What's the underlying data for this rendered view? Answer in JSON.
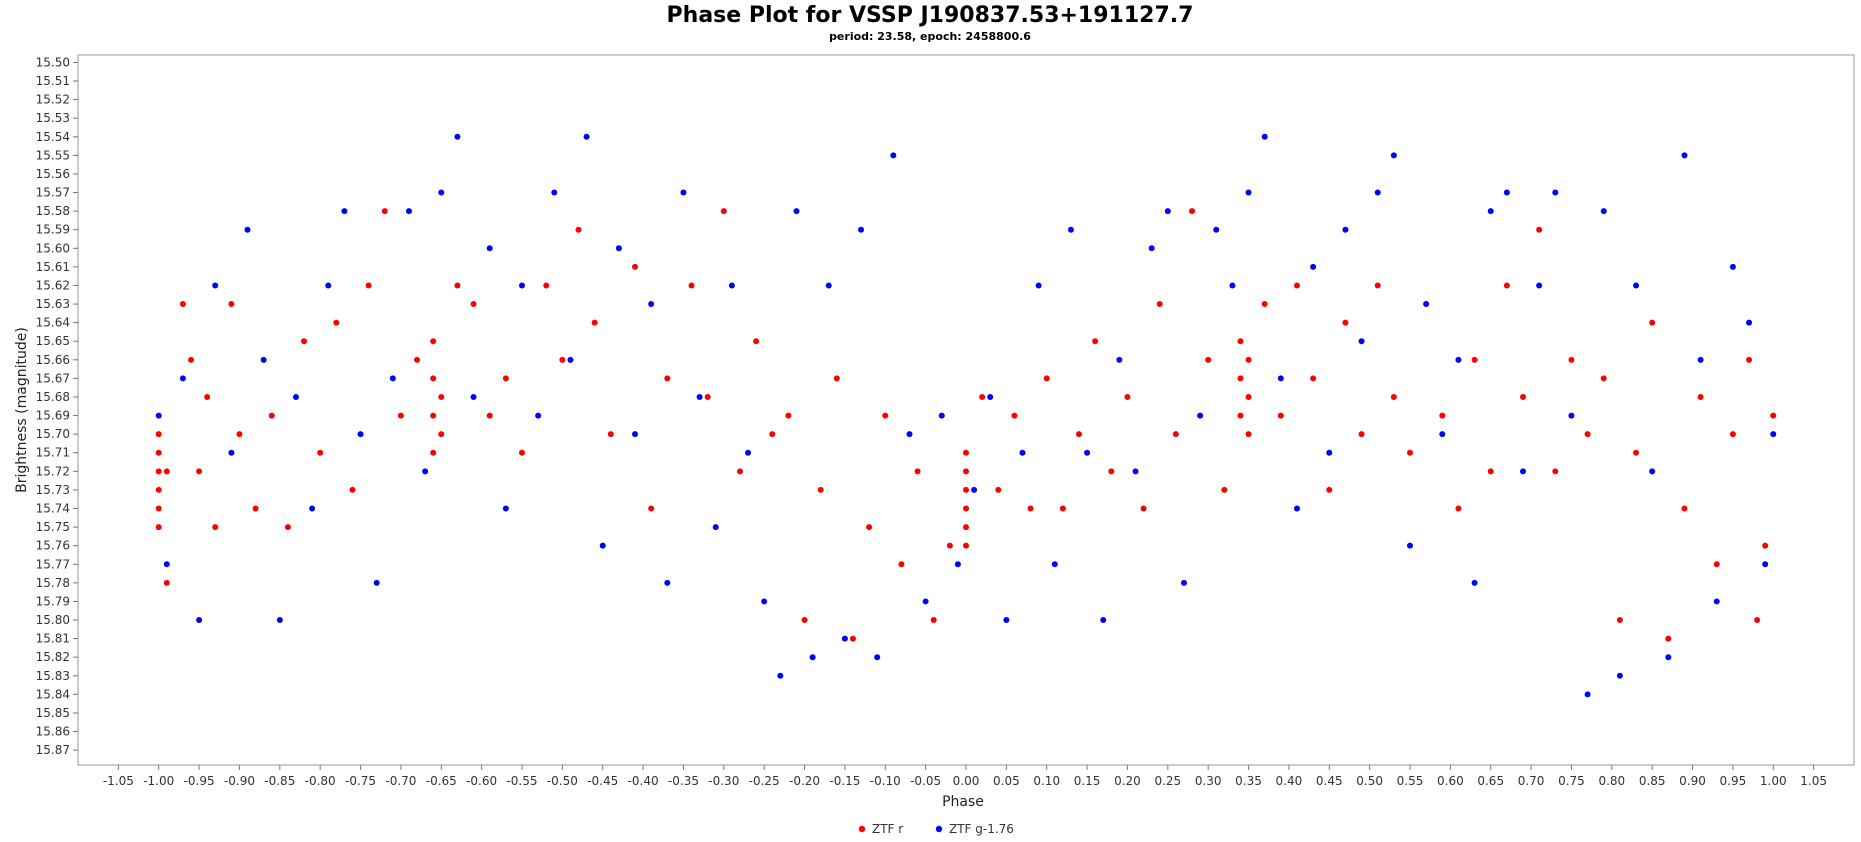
{
  "chart_data": {
    "type": "scatter",
    "title": "Phase Plot for VSSP J190837.53+191127.7",
    "subtitle": "period: 23.58, epoch: 2458800.6",
    "xlabel": "Phase",
    "ylabel": "Brightness (magnitude)",
    "xlim": [
      -1.1,
      1.1
    ],
    "ylim": [
      15.878,
      15.496
    ],
    "y_inverted": true,
    "grid": false,
    "legend_position": "bottom-center",
    "x_ticks": [
      "-1.05",
      "-1.00",
      "-0.95",
      "-0.90",
      "-0.85",
      "-0.80",
      "-0.75",
      "-0.70",
      "-0.65",
      "-0.60",
      "-0.55",
      "-0.50",
      "-0.45",
      "-0.40",
      "-0.35",
      "-0.30",
      "-0.25",
      "-0.20",
      "-0.15",
      "-0.10",
      "-0.05",
      "0.00",
      "0.05",
      "0.10",
      "0.15",
      "0.20",
      "0.25",
      "0.30",
      "0.35",
      "0.40",
      "0.45",
      "0.50",
      "0.55",
      "0.60",
      "0.65",
      "0.70",
      "0.75",
      "0.80",
      "0.85",
      "0.90",
      "0.95",
      "1.00",
      "1.05"
    ],
    "y_ticks": [
      "15.50",
      "15.51",
      "15.52",
      "15.53",
      "15.54",
      "15.55",
      "15.56",
      "15.57",
      "15.58",
      "15.59",
      "15.60",
      "15.61",
      "15.62",
      "15.63",
      "15.64",
      "15.65",
      "15.66",
      "15.67",
      "15.68",
      "15.69",
      "15.70",
      "15.71",
      "15.72",
      "15.73",
      "15.74",
      "15.75",
      "15.76",
      "15.77",
      "15.78",
      "15.79",
      "15.80",
      "15.81",
      "15.82",
      "15.83",
      "15.84",
      "15.85",
      "15.86",
      "15.87"
    ],
    "series": [
      {
        "name": "ZTF r",
        "color": "#ff0000",
        "marker": "circle",
        "points": [
          [
            -1.0,
            15.7
          ],
          [
            -1.0,
            15.71
          ],
          [
            -1.0,
            15.72
          ],
          [
            -1.0,
            15.73
          ],
          [
            -1.0,
            15.74
          ],
          [
            -1.0,
            15.75
          ],
          [
            -0.99,
            15.72
          ],
          [
            -0.99,
            15.78
          ],
          [
            -0.97,
            15.63
          ],
          [
            -0.96,
            15.66
          ],
          [
            -0.95,
            15.72
          ],
          [
            -0.94,
            15.68
          ],
          [
            -0.93,
            15.75
          ],
          [
            -0.91,
            15.63
          ],
          [
            -0.9,
            15.7
          ],
          [
            -0.88,
            15.74
          ],
          [
            -0.86,
            15.69
          ],
          [
            -0.84,
            15.75
          ],
          [
            -0.82,
            15.65
          ],
          [
            -0.8,
            15.71
          ],
          [
            -0.78,
            15.64
          ],
          [
            -0.76,
            15.73
          ],
          [
            -0.74,
            15.62
          ],
          [
            -0.72,
            15.58
          ],
          [
            -0.7,
            15.69
          ],
          [
            -0.68,
            15.66
          ],
          [
            -0.66,
            15.65
          ],
          [
            -0.66,
            15.67
          ],
          [
            -0.66,
            15.69
          ],
          [
            -0.66,
            15.71
          ],
          [
            -0.65,
            15.68
          ],
          [
            -0.65,
            15.7
          ],
          [
            -0.63,
            15.62
          ],
          [
            -0.61,
            15.63
          ],
          [
            -0.59,
            15.69
          ],
          [
            -0.57,
            15.67
          ],
          [
            -0.55,
            15.71
          ],
          [
            -0.52,
            15.62
          ],
          [
            -0.5,
            15.66
          ],
          [
            -0.48,
            15.59
          ],
          [
            -0.46,
            15.64
          ],
          [
            -0.44,
            15.7
          ],
          [
            -0.41,
            15.61
          ],
          [
            -0.39,
            15.74
          ],
          [
            -0.37,
            15.67
          ],
          [
            -0.34,
            15.62
          ],
          [
            -0.32,
            15.68
          ],
          [
            -0.3,
            15.58
          ],
          [
            -0.28,
            15.72
          ],
          [
            -0.26,
            15.65
          ],
          [
            -0.24,
            15.7
          ],
          [
            -0.22,
            15.69
          ],
          [
            -0.2,
            15.8
          ],
          [
            -0.18,
            15.73
          ],
          [
            -0.16,
            15.67
          ],
          [
            -0.14,
            15.81
          ],
          [
            -0.12,
            15.75
          ],
          [
            -0.1,
            15.69
          ],
          [
            -0.08,
            15.77
          ],
          [
            -0.06,
            15.72
          ],
          [
            -0.04,
            15.8
          ],
          [
            -0.02,
            15.76
          ],
          [
            0.0,
            15.71
          ],
          [
            0.0,
            15.72
          ],
          [
            0.0,
            15.73
          ],
          [
            0.0,
            15.74
          ],
          [
            0.0,
            15.75
          ],
          [
            0.0,
            15.76
          ],
          [
            0.02,
            15.68
          ],
          [
            0.04,
            15.73
          ],
          [
            0.06,
            15.69
          ],
          [
            0.08,
            15.74
          ],
          [
            0.1,
            15.67
          ],
          [
            0.12,
            15.74
          ],
          [
            0.14,
            15.7
          ],
          [
            0.16,
            15.65
          ],
          [
            0.18,
            15.72
          ],
          [
            0.2,
            15.68
          ],
          [
            0.22,
            15.74
          ],
          [
            0.24,
            15.63
          ],
          [
            0.26,
            15.7
          ],
          [
            0.28,
            15.58
          ],
          [
            0.3,
            15.66
          ],
          [
            0.32,
            15.73
          ],
          [
            0.34,
            15.65
          ],
          [
            0.34,
            15.67
          ],
          [
            0.34,
            15.69
          ],
          [
            0.35,
            15.66
          ],
          [
            0.35,
            15.68
          ],
          [
            0.35,
            15.7
          ],
          [
            0.37,
            15.63
          ],
          [
            0.39,
            15.69
          ],
          [
            0.41,
            15.62
          ],
          [
            0.43,
            15.67
          ],
          [
            0.45,
            15.73
          ],
          [
            0.47,
            15.64
          ],
          [
            0.49,
            15.7
          ],
          [
            0.51,
            15.62
          ],
          [
            0.53,
            15.68
          ],
          [
            0.55,
            15.71
          ],
          [
            0.57,
            15.63
          ],
          [
            0.59,
            15.69
          ],
          [
            0.61,
            15.74
          ],
          [
            0.63,
            15.66
          ],
          [
            0.65,
            15.72
          ],
          [
            0.67,
            15.62
          ],
          [
            0.69,
            15.68
          ],
          [
            0.71,
            15.59
          ],
          [
            0.73,
            15.72
          ],
          [
            0.75,
            15.66
          ],
          [
            0.77,
            15.7
          ],
          [
            0.79,
            15.67
          ],
          [
            0.81,
            15.8
          ],
          [
            0.83,
            15.71
          ],
          [
            0.85,
            15.64
          ],
          [
            0.87,
            15.81
          ],
          [
            0.89,
            15.74
          ],
          [
            0.91,
            15.68
          ],
          [
            0.93,
            15.77
          ],
          [
            0.95,
            15.7
          ],
          [
            0.97,
            15.66
          ],
          [
            0.98,
            15.8
          ],
          [
            0.99,
            15.76
          ],
          [
            1.0,
            15.69
          ]
        ]
      },
      {
        "name": "ZTF g-1.76",
        "color": "#0000ff",
        "marker": "circle",
        "points": [
          [
            -1.0,
            15.69
          ],
          [
            -0.99,
            15.77
          ],
          [
            -0.97,
            15.67
          ],
          [
            -0.95,
            15.8
          ],
          [
            -0.93,
            15.62
          ],
          [
            -0.91,
            15.71
          ],
          [
            -0.89,
            15.59
          ],
          [
            -0.87,
            15.66
          ],
          [
            -0.85,
            15.8
          ],
          [
            -0.83,
            15.68
          ],
          [
            -0.81,
            15.74
          ],
          [
            -0.79,
            15.62
          ],
          [
            -0.77,
            15.58
          ],
          [
            -0.75,
            15.7
          ],
          [
            -0.73,
            15.78
          ],
          [
            -0.71,
            15.67
          ],
          [
            -0.69,
            15.58
          ],
          [
            -0.67,
            15.72
          ],
          [
            -0.65,
            15.57
          ],
          [
            -0.63,
            15.54
          ],
          [
            -0.61,
            15.68
          ],
          [
            -0.59,
            15.6
          ],
          [
            -0.57,
            15.74
          ],
          [
            -0.55,
            15.62
          ],
          [
            -0.53,
            15.69
          ],
          [
            -0.51,
            15.57
          ],
          [
            -0.49,
            15.66
          ],
          [
            -0.47,
            15.54
          ],
          [
            -0.45,
            15.76
          ],
          [
            -0.43,
            15.6
          ],
          [
            -0.41,
            15.7
          ],
          [
            -0.39,
            15.63
          ],
          [
            -0.37,
            15.78
          ],
          [
            -0.35,
            15.57
          ],
          [
            -0.33,
            15.68
          ],
          [
            -0.31,
            15.75
          ],
          [
            -0.29,
            15.62
          ],
          [
            -0.27,
            15.71
          ],
          [
            -0.25,
            15.79
          ],
          [
            -0.23,
            15.83
          ],
          [
            -0.21,
            15.58
          ],
          [
            -0.19,
            15.82
          ],
          [
            -0.17,
            15.62
          ],
          [
            -0.15,
            15.81
          ],
          [
            -0.13,
            15.59
          ],
          [
            -0.11,
            15.82
          ],
          [
            -0.09,
            15.55
          ],
          [
            -0.07,
            15.7
          ],
          [
            -0.05,
            15.79
          ],
          [
            -0.03,
            15.69
          ],
          [
            -0.01,
            15.77
          ],
          [
            0.01,
            15.73
          ],
          [
            0.03,
            15.68
          ],
          [
            0.05,
            15.8
          ],
          [
            0.07,
            15.71
          ],
          [
            0.09,
            15.62
          ],
          [
            0.11,
            15.77
          ],
          [
            0.13,
            15.59
          ],
          [
            0.15,
            15.71
          ],
          [
            0.17,
            15.8
          ],
          [
            0.19,
            15.66
          ],
          [
            0.21,
            15.72
          ],
          [
            0.23,
            15.6
          ],
          [
            0.25,
            15.58
          ],
          [
            0.27,
            15.78
          ],
          [
            0.29,
            15.69
          ],
          [
            0.31,
            15.59
          ],
          [
            0.33,
            15.62
          ],
          [
            0.35,
            15.57
          ],
          [
            0.37,
            15.54
          ],
          [
            0.39,
            15.67
          ],
          [
            0.41,
            15.74
          ],
          [
            0.43,
            15.61
          ],
          [
            0.45,
            15.71
          ],
          [
            0.47,
            15.59
          ],
          [
            0.49,
            15.65
          ],
          [
            0.51,
            15.57
          ],
          [
            0.53,
            15.55
          ],
          [
            0.55,
            15.76
          ],
          [
            0.57,
            15.63
          ],
          [
            0.59,
            15.7
          ],
          [
            0.61,
            15.66
          ],
          [
            0.63,
            15.78
          ],
          [
            0.65,
            15.58
          ],
          [
            0.67,
            15.57
          ],
          [
            0.69,
            15.72
          ],
          [
            0.71,
            15.62
          ],
          [
            0.73,
            15.57
          ],
          [
            0.75,
            15.69
          ],
          [
            0.77,
            15.84
          ],
          [
            0.79,
            15.58
          ],
          [
            0.81,
            15.83
          ],
          [
            0.83,
            15.62
          ],
          [
            0.85,
            15.72
          ],
          [
            0.87,
            15.82
          ],
          [
            0.89,
            15.55
          ],
          [
            0.91,
            15.66
          ],
          [
            0.93,
            15.79
          ],
          [
            0.95,
            15.61
          ],
          [
            0.97,
            15.64
          ],
          [
            0.99,
            15.77
          ],
          [
            1.0,
            15.7
          ]
        ]
      }
    ]
  }
}
